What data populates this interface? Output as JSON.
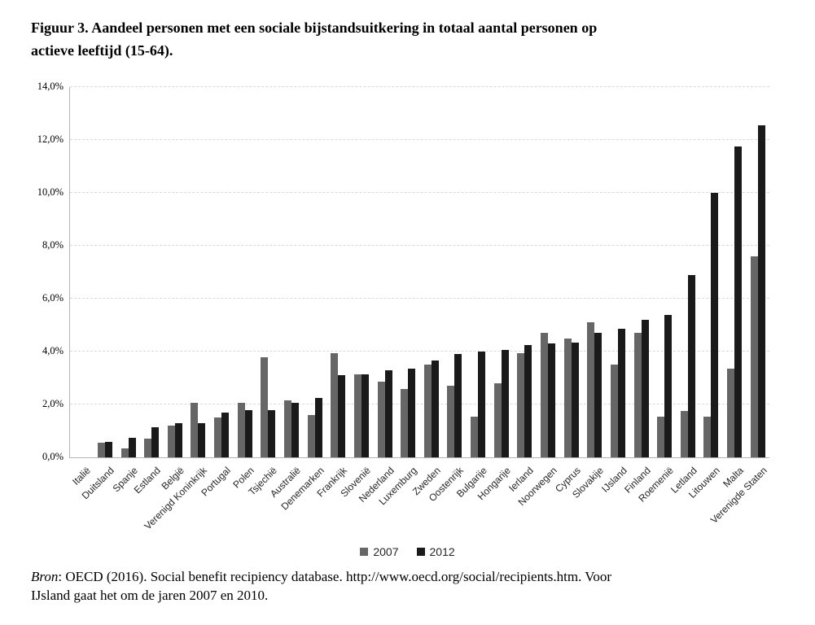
{
  "header": {
    "title_line1": "Figuur 3. Aandeel personen met een sociale bijstandsuitkering in totaal aantal personen op",
    "title_line2": "actieve leeftijd (15-64)."
  },
  "legend": {
    "items": [
      {
        "label": "2007",
        "color": "#666666"
      },
      {
        "label": "2012",
        "color": "#1a1a1a"
      }
    ]
  },
  "source": {
    "label_italic": "Bron",
    "line1": ": OECD (2016). Social benefit recipiency database. http://www.oecd.org/social/recipients.htm. Voor",
    "line2": "IJsland gaat het om de jaren 2007 en 2010."
  },
  "chart_data": {
    "type": "bar",
    "title": "Figuur 3. Aandeel personen met een sociale bijstandsuitkering in totaal aantal personen op actieve leeftijd (15-64).",
    "categories": [
      "Italië",
      "Duitsland",
      "Spanje",
      "Estland",
      "België",
      "Verenigd Koninkrijk",
      "Portugal",
      "Polen",
      "Tsjechië",
      "Australië",
      "Denemarken",
      "Frankrijk",
      "Slovenië",
      "Nederland",
      "Luxemburg",
      "Zweden",
      "Oostenrijk",
      "Bulgarije",
      "Hongarije",
      "Ierland",
      "Noorwegen",
      "Cyprus",
      "Slovakije",
      "IJsland",
      "Finland",
      "Roemenië",
      "Letland",
      "Litouwen",
      "Malta",
      "Verenigde Staten"
    ],
    "series": [
      {
        "name": "2007",
        "color": "#666666",
        "values": [
          0,
          0.55,
          0.35,
          0.7,
          1.2,
          2.05,
          1.5,
          2.05,
          3.8,
          2.15,
          1.6,
          3.95,
          3.15,
          2.85,
          2.6,
          3.5,
          2.7,
          1.55,
          2.8,
          3.95,
          4.7,
          4.5,
          5.1,
          3.5,
          4.7,
          1.55,
          1.75,
          1.55,
          3.35,
          7.6
        ]
      },
      {
        "name": "2012",
        "color": "#1a1a1a",
        "values": [
          0,
          0.6,
          0.75,
          1.15,
          1.3,
          1.3,
          1.7,
          1.8,
          1.8,
          2.05,
          2.25,
          3.1,
          3.15,
          3.3,
          3.35,
          3.65,
          3.9,
          4.0,
          4.05,
          4.25,
          4.3,
          4.35,
          4.7,
          4.85,
          5.2,
          5.4,
          6.9,
          10.0,
          11.75,
          12.55
        ]
      }
    ],
    "xlabel": "",
    "ylabel": "",
    "ylim": [
      0,
      14
    ],
    "ytick_step": 2,
    "ytick_labels": [
      "0,0%",
      "2,0%",
      "4,0%",
      "6,0%",
      "8,0%",
      "10,0%",
      "12,0%",
      "14,0%"
    ],
    "grid": "horizontal-dashed",
    "legend_position": "bottom-center",
    "value_unit": "%"
  }
}
